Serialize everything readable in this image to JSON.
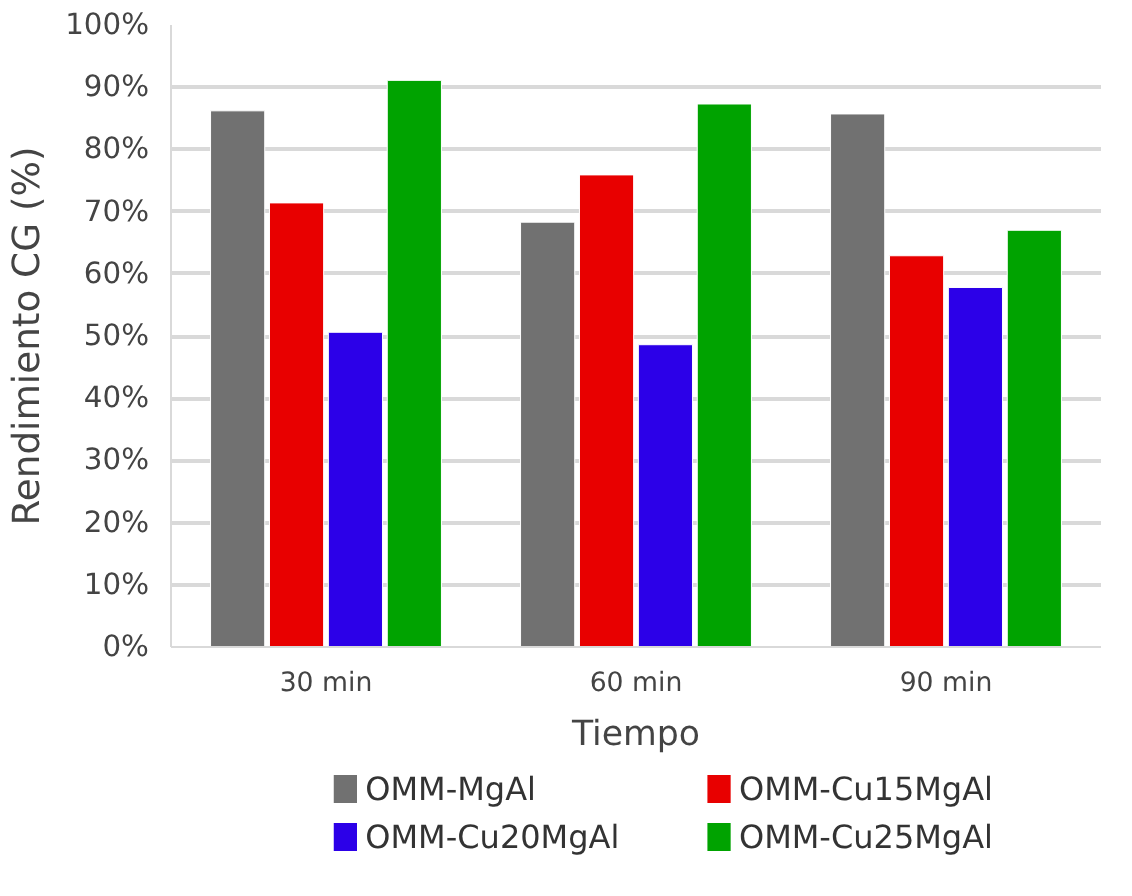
{
  "chart_data": {
    "type": "bar",
    "xlabel": "Tiempo",
    "ylabel": "Rendimiento CG (%)",
    "categories": [
      "30 min",
      "60 min",
      "90 min"
    ],
    "series": [
      {
        "name": "OMM-MgAl",
        "color": "#717171",
        "values": [
          86.2,
          68.3,
          85.7
        ]
      },
      {
        "name": "OMM-Cu15MgAl",
        "color": "#e80000",
        "values": [
          71.4,
          75.9,
          62.9
        ]
      },
      {
        "name": "OMM-Cu20MgAl",
        "color": "#2c00e8",
        "values": [
          50.6,
          48.6,
          57.8
        ]
      },
      {
        "name": "OMM-Cu25MgAl",
        "color": "#00a300",
        "values": [
          91.1,
          87.3,
          67.0
        ]
      }
    ],
    "ylim": [
      0,
      100
    ],
    "yticks": [
      {
        "value": 0,
        "label": "0%"
      },
      {
        "value": 10,
        "label": "10%"
      },
      {
        "value": 20,
        "label": "20%"
      },
      {
        "value": 30,
        "label": "30%"
      },
      {
        "value": 40,
        "label": "40%"
      },
      {
        "value": 50,
        "label": "50%"
      },
      {
        "value": 60,
        "label": "60%"
      },
      {
        "value": 70,
        "label": "70%"
      },
      {
        "value": 80,
        "label": "80%"
      },
      {
        "value": 90,
        "label": "90%"
      },
      {
        "value": 100,
        "label": "100%"
      }
    ],
    "grid": "y",
    "legend": "bottom"
  }
}
